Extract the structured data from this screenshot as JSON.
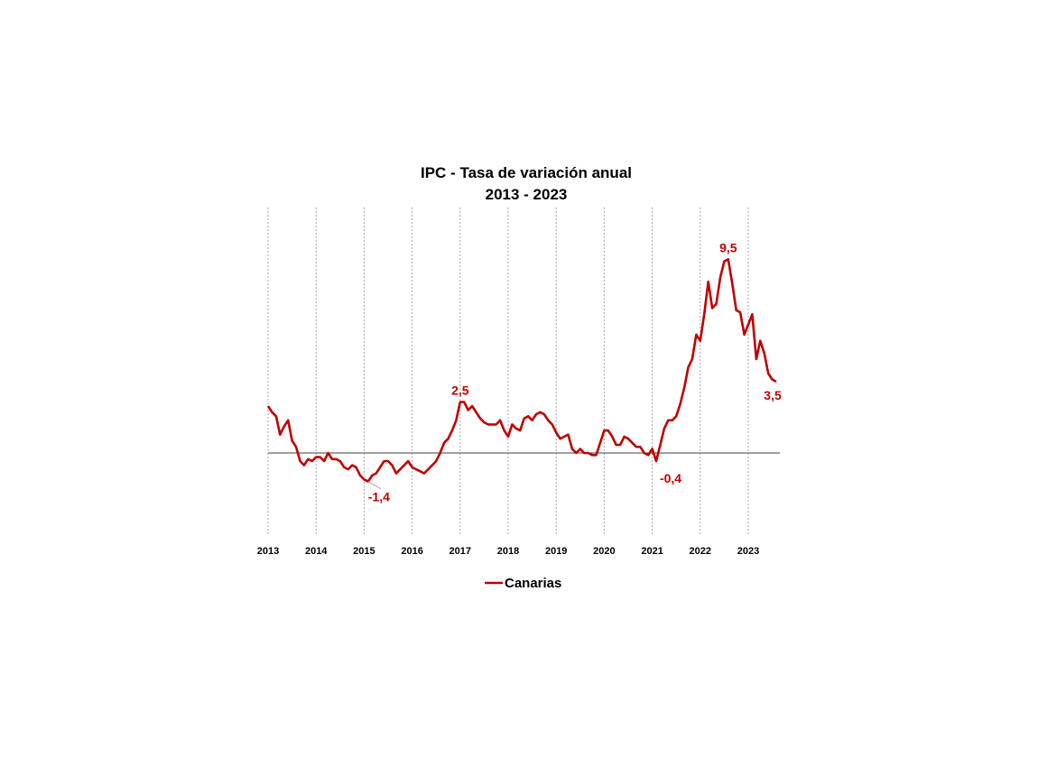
{
  "chart_data": {
    "type": "line",
    "title": "IPC - Tasa de variación anual",
    "subtitle": "2013 - 2023",
    "xlabel": "",
    "ylabel": "",
    "x_start": "2013-01",
    "x_frequency": "monthly",
    "x_tick_labels": [
      "2013",
      "2014",
      "2015",
      "2016",
      "2017",
      "2018",
      "2019",
      "2020",
      "2021",
      "2022",
      "2023"
    ],
    "ylim": [
      -4,
      12
    ],
    "y_axis_visible": false,
    "grid": "vertical dotted at each year",
    "legend_position": "bottom",
    "series": [
      {
        "name": "Canarias",
        "color": "#C00000",
        "values": [
          2.3,
          2.0,
          1.8,
          0.9,
          1.3,
          1.6,
          0.6,
          0.3,
          -0.4,
          -0.6,
          -0.3,
          -0.4,
          -0.2,
          -0.2,
          -0.4,
          0.0,
          -0.3,
          -0.3,
          -0.4,
          -0.7,
          -0.8,
          -0.6,
          -0.7,
          -1.1,
          -1.3,
          -1.4,
          -1.1,
          -1.0,
          -0.7,
          -0.4,
          -0.4,
          -0.6,
          -1.0,
          -0.8,
          -0.6,
          -0.4,
          -0.7,
          -0.8,
          -0.9,
          -1.0,
          -0.8,
          -0.6,
          -0.4,
          0.0,
          0.5,
          0.7,
          1.1,
          1.6,
          2.5,
          2.5,
          2.1,
          2.3,
          2.0,
          1.7,
          1.5,
          1.4,
          1.4,
          1.4,
          1.6,
          1.1,
          0.8,
          1.4,
          1.2,
          1.1,
          1.7,
          1.8,
          1.6,
          1.9,
          2.0,
          1.9,
          1.6,
          1.4,
          1.0,
          0.7,
          0.8,
          0.9,
          0.2,
          0.0,
          0.2,
          0.0,
          0.0,
          -0.1,
          -0.1,
          0.5,
          1.1,
          1.1,
          0.8,
          0.4,
          0.4,
          0.8,
          0.7,
          0.5,
          0.3,
          0.3,
          0.0,
          -0.1,
          0.2,
          -0.4,
          0.4,
          1.2,
          1.6,
          1.6,
          1.8,
          2.4,
          3.2,
          4.2,
          4.6,
          5.8,
          5.5,
          6.8,
          8.4,
          7.1,
          7.3,
          8.6,
          9.4,
          9.5,
          8.3,
          7.0,
          6.9,
          5.8,
          6.3,
          6.8,
          4.6,
          5.5,
          4.9,
          3.9,
          3.6,
          3.5
        ]
      }
    ],
    "annotations": [
      {
        "label": "-1,4",
        "index": 25
      },
      {
        "label": "2,5",
        "index": 48
      },
      {
        "label": "-0,4",
        "index": 97
      },
      {
        "label": "9,5",
        "index": 115
      },
      {
        "label": "3,5",
        "index": 127
      }
    ]
  }
}
